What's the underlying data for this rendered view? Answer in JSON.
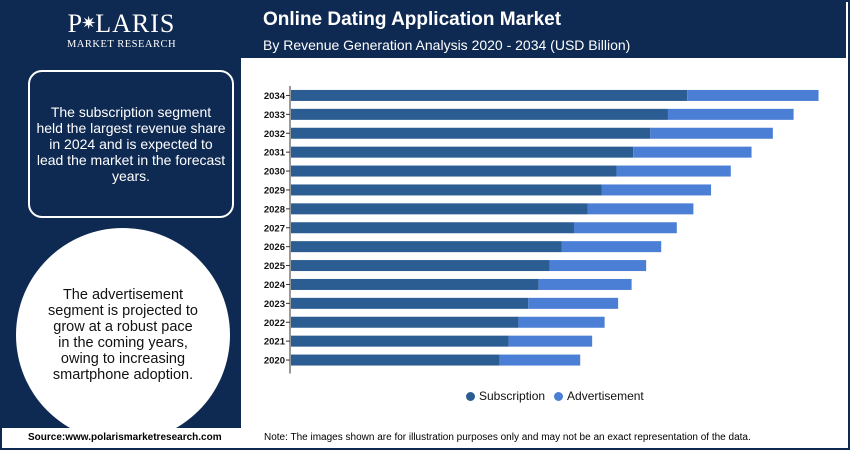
{
  "brand": {
    "name_left": "P",
    "name_right": "LARIS",
    "tagline": "MARKET RESEARCH"
  },
  "sidebar": {
    "insight_1": "The subscription segment held the largest revenue share in 2024 and is expected to lead the market in the forecast years.",
    "insight_2": "The advertisement segment is projected to grow at a robust pace in the coming years, owing to increasing smartphone adoption."
  },
  "footer": {
    "source": "Source:www.polarismarketresearch.com",
    "note": "Note: The images shown are for illustration purposes only and may not be an exact representation of the data."
  },
  "colors": {
    "navy": "#0f2a52",
    "subscription": "#2b5d92",
    "advertisement": "#4b7fd6"
  },
  "chart_data": {
    "type": "bar",
    "orientation": "horizontal",
    "stacked": true,
    "title": "Online Dating Application Market",
    "subtitle": "By Revenue Generation Analysis 2020 - 2034 (USD Billion)",
    "categories": [
      "2034",
      "2033",
      "2032",
      "2031",
      "2030",
      "2029",
      "2028",
      "2027",
      "2026",
      "2025",
      "2024",
      "2023",
      "2022",
      "2021",
      "2020"
    ],
    "series": [
      {
        "name": "Subscription",
        "color": "#2b5d92",
        "values": [
          7.63,
          7.26,
          6.92,
          6.59,
          6.27,
          5.98,
          5.71,
          5.45,
          5.21,
          4.98,
          4.77,
          4.57,
          4.38,
          4.19,
          4.02
        ]
      },
      {
        "name": "Advertisement",
        "color": "#4b7fd6",
        "values": [
          2.53,
          2.42,
          2.36,
          2.28,
          2.2,
          2.11,
          2.04,
          1.98,
          1.92,
          1.86,
          1.79,
          1.73,
          1.66,
          1.61,
          1.55
        ]
      }
    ],
    "legend_position": "bottom",
    "grid": false,
    "xlim": [
      0,
      10.4
    ]
  }
}
